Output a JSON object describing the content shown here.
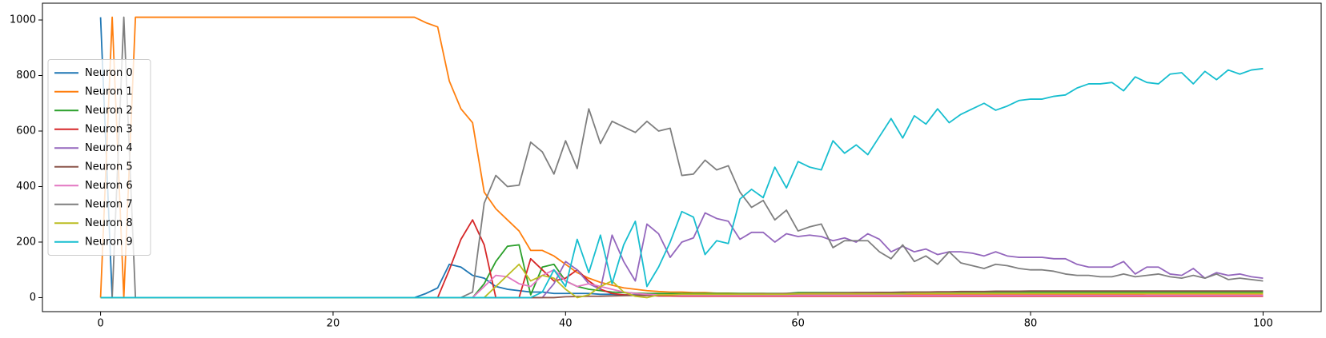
{
  "chart_data": {
    "type": "line",
    "x": [
      0,
      1,
      2,
      3,
      4,
      5,
      6,
      7,
      8,
      9,
      10,
      11,
      12,
      13,
      14,
      15,
      16,
      17,
      18,
      19,
      20,
      21,
      22,
      23,
      24,
      25,
      26,
      27,
      28,
      29,
      30,
      31,
      32,
      33,
      34,
      35,
      36,
      37,
      38,
      39,
      40,
      41,
      42,
      43,
      44,
      45,
      46,
      47,
      48,
      49,
      50,
      51,
      52,
      53,
      54,
      55,
      56,
      57,
      58,
      59,
      60,
      61,
      62,
      63,
      64,
      65,
      66,
      67,
      68,
      69,
      70,
      71,
      72,
      73,
      74,
      75,
      76,
      77,
      78,
      79,
      80,
      81,
      82,
      83,
      84,
      85,
      86,
      87,
      88,
      89,
      90,
      91,
      92,
      93,
      94,
      95,
      96,
      97,
      98,
      99,
      100
    ],
    "xlim": [
      -5,
      105
    ],
    "xticks": [
      0,
      20,
      40,
      60,
      80,
      100
    ],
    "ylim": [
      -50.5,
      1060.5
    ],
    "yticks": [
      0,
      200,
      400,
      600,
      800,
      1000
    ],
    "grid": false,
    "legend": "center left",
    "series": [
      {
        "name": "Neuron 0",
        "color": "#1f77b4",
        "values": [
          1010,
          0,
          0,
          0,
          0,
          0,
          0,
          0,
          0,
          0,
          0,
          0,
          0,
          0,
          0,
          0,
          0,
          0,
          0,
          0,
          0,
          0,
          0,
          0,
          0,
          0,
          0,
          0,
          15,
          35,
          120,
          110,
          80,
          70,
          40,
          30,
          25,
          20,
          20,
          15,
          15,
          15,
          15,
          12,
          12,
          10,
          10,
          10,
          10,
          10,
          10,
          10,
          10,
          10,
          10,
          10,
          10,
          10,
          10,
          10,
          8,
          8,
          8,
          8,
          8,
          8,
          8,
          8,
          8,
          8,
          8,
          8,
          8,
          8,
          8,
          8,
          8,
          8,
          8,
          8,
          6,
          6,
          6,
          6,
          6,
          6,
          6,
          6,
          6,
          6,
          6,
          6,
          6,
          6,
          6,
          6,
          6,
          6,
          6,
          6,
          6
        ]
      },
      {
        "name": "Neuron 1",
        "color": "#ff7f0e",
        "values": [
          0,
          1010,
          0,
          1010,
          1010,
          1010,
          1010,
          1010,
          1010,
          1010,
          1010,
          1010,
          1010,
          1010,
          1010,
          1010,
          1010,
          1010,
          1010,
          1010,
          1010,
          1010,
          1010,
          1010,
          1010,
          1010,
          1010,
          1010,
          990,
          975,
          780,
          680,
          630,
          380,
          320,
          280,
          240,
          170,
          170,
          150,
          120,
          90,
          70,
          55,
          45,
          35,
          30,
          25,
          22,
          20,
          20,
          18,
          18,
          16,
          16,
          15,
          15,
          15,
          14,
          14,
          13,
          13,
          13,
          13,
          13,
          13,
          13,
          13,
          13,
          13,
          12,
          12,
          12,
          12,
          12,
          12,
          12,
          12,
          12,
          12,
          11,
          11,
          11,
          11,
          11,
          11,
          11,
          11,
          11,
          11,
          10,
          10,
          10,
          10,
          10,
          10,
          10,
          10,
          10,
          10,
          10
        ]
      },
      {
        "name": "Neuron 2",
        "color": "#2ca02c",
        "values": [
          0,
          0,
          0,
          0,
          0,
          0,
          0,
          0,
          0,
          0,
          0,
          0,
          0,
          0,
          0,
          0,
          0,
          0,
          0,
          0,
          0,
          0,
          0,
          0,
          0,
          0,
          0,
          0,
          0,
          0,
          0,
          0,
          0,
          50,
          130,
          185,
          190,
          10,
          110,
          120,
          60,
          40,
          30,
          25,
          20,
          18,
          16,
          15,
          15,
          15,
          15,
          15,
          15,
          15,
          15,
          15,
          15,
          15,
          15,
          15,
          18,
          18,
          18,
          18,
          18,
          18,
          18,
          18,
          18,
          18,
          20,
          20,
          20,
          20,
          20,
          20,
          20,
          20,
          20,
          20,
          20,
          20,
          20,
          20,
          20,
          20,
          20,
          20,
          20,
          20,
          20,
          20,
          20,
          20,
          20,
          20,
          20,
          20,
          20,
          20,
          20
        ]
      },
      {
        "name": "Neuron 3",
        "color": "#d62728",
        "values": [
          0,
          0,
          0,
          0,
          0,
          0,
          0,
          0,
          0,
          0,
          0,
          0,
          0,
          0,
          0,
          0,
          0,
          0,
          0,
          0,
          0,
          0,
          0,
          0,
          0,
          0,
          0,
          0,
          0,
          0,
          100,
          210,
          280,
          190,
          0,
          0,
          0,
          140,
          100,
          60,
          70,
          100,
          60,
          30,
          15,
          10,
          8,
          8,
          6,
          6,
          5,
          5,
          5,
          5,
          5,
          5,
          5,
          5,
          5,
          5,
          5,
          5,
          5,
          5,
          5,
          5,
          5,
          5,
          5,
          5,
          5,
          5,
          5,
          5,
          5,
          5,
          5,
          5,
          5,
          5,
          5,
          5,
          5,
          5,
          5,
          5,
          5,
          5,
          5,
          5,
          5,
          5,
          5,
          5,
          5,
          5,
          5,
          5,
          5,
          5,
          5
        ]
      },
      {
        "name": "Neuron 4",
        "color": "#9467bd",
        "values": [
          0,
          0,
          0,
          0,
          0,
          0,
          0,
          0,
          0,
          0,
          0,
          0,
          0,
          0,
          0,
          0,
          0,
          0,
          0,
          0,
          0,
          0,
          0,
          0,
          0,
          0,
          0,
          0,
          0,
          0,
          0,
          0,
          0,
          0,
          0,
          0,
          0,
          0,
          0,
          50,
          130,
          100,
          50,
          30,
          225,
          130,
          60,
          265,
          230,
          145,
          200,
          215,
          305,
          285,
          275,
          210,
          235,
          235,
          200,
          230,
          220,
          225,
          220,
          205,
          215,
          200,
          230,
          210,
          165,
          185,
          165,
          175,
          155,
          165,
          165,
          160,
          150,
          165,
          150,
          145,
          145,
          145,
          140,
          140,
          120,
          110,
          110,
          110,
          130,
          85,
          110,
          110,
          85,
          80,
          105,
          70,
          90,
          80,
          85,
          75,
          70
        ]
      },
      {
        "name": "Neuron 5",
        "color": "#8c564b",
        "values": [
          0,
          0,
          0,
          0,
          0,
          0,
          0,
          0,
          0,
          0,
          0,
          0,
          0,
          0,
          0,
          0,
          0,
          0,
          0,
          0,
          0,
          0,
          0,
          0,
          0,
          0,
          0,
          0,
          0,
          0,
          0,
          0,
          0,
          0,
          0,
          0,
          0,
          0,
          0,
          0,
          3,
          4,
          5,
          5,
          6,
          7,
          8,
          8,
          9,
          10,
          10,
          11,
          11,
          12,
          12,
          13,
          13,
          14,
          14,
          15,
          15,
          16,
          16,
          17,
          17,
          18,
          18,
          19,
          19,
          20,
          20,
          20,
          21,
          21,
          22,
          22,
          22,
          23,
          23,
          23,
          24,
          24,
          24,
          24,
          24,
          24,
          24,
          24,
          24,
          24,
          24,
          24,
          24,
          24,
          24,
          24,
          24,
          24,
          24,
          24,
          24
        ]
      },
      {
        "name": "Neuron 6",
        "color": "#e377c2",
        "values": [
          0,
          0,
          0,
          0,
          0,
          0,
          0,
          0,
          0,
          0,
          0,
          0,
          0,
          0,
          0,
          0,
          0,
          0,
          0,
          0,
          0,
          0,
          0,
          0,
          0,
          0,
          0,
          0,
          0,
          0,
          0,
          0,
          0,
          40,
          80,
          75,
          50,
          40,
          80,
          100,
          60,
          40,
          50,
          40,
          30,
          20,
          15,
          12,
          10,
          10,
          8,
          8,
          8,
          8,
          8,
          8,
          8,
          8,
          8,
          8,
          8,
          8,
          8,
          8,
          8,
          8,
          8,
          8,
          8,
          8,
          8,
          8,
          8,
          8,
          8,
          8,
          8,
          8,
          8,
          8,
          8,
          8,
          8,
          8,
          8,
          8,
          8,
          8,
          8,
          8,
          8,
          8,
          8,
          8,
          8,
          8,
          8,
          8,
          8,
          8,
          8
        ]
      },
      {
        "name": "Neuron 7",
        "color": "#7f7f7f",
        "values": [
          0,
          0,
          1010,
          0,
          0,
          0,
          0,
          0,
          0,
          0,
          0,
          0,
          0,
          0,
          0,
          0,
          0,
          0,
          0,
          0,
          0,
          0,
          0,
          0,
          0,
          0,
          0,
          0,
          0,
          0,
          0,
          0,
          20,
          340,
          440,
          400,
          405,
          560,
          525,
          445,
          565,
          465,
          680,
          555,
          635,
          615,
          595,
          635,
          600,
          610,
          440,
          445,
          495,
          460,
          475,
          380,
          325,
          350,
          280,
          315,
          240,
          255,
          265,
          180,
          205,
          205,
          205,
          165,
          140,
          190,
          130,
          150,
          120,
          165,
          125,
          115,
          105,
          120,
          115,
          105,
          100,
          100,
          95,
          85,
          80,
          80,
          75,
          75,
          85,
          75,
          80,
          85,
          75,
          70,
          80,
          70,
          85,
          65,
          70,
          65,
          60
        ]
      },
      {
        "name": "Neuron 8",
        "color": "#bcbd22",
        "values": [
          0,
          0,
          0,
          0,
          0,
          0,
          0,
          0,
          0,
          0,
          0,
          0,
          0,
          0,
          0,
          0,
          0,
          0,
          0,
          0,
          0,
          0,
          0,
          0,
          0,
          0,
          0,
          0,
          0,
          0,
          0,
          0,
          0,
          0,
          40,
          80,
          120,
          60,
          80,
          70,
          30,
          0,
          10,
          40,
          60,
          20,
          5,
          0,
          10,
          10,
          12,
          12,
          12,
          12,
          12,
          12,
          12,
          12,
          12,
          12,
          14,
          14,
          14,
          14,
          14,
          14,
          14,
          14,
          14,
          14,
          15,
          15,
          15,
          15,
          15,
          15,
          15,
          15,
          15,
          15,
          15,
          15,
          15,
          15,
          15,
          15,
          15,
          15,
          15,
          15,
          15,
          15,
          15,
          15,
          15,
          15,
          15,
          15,
          15,
          15,
          15
        ]
      },
      {
        "name": "Neuron 9",
        "color": "#17becf",
        "values": [
          0,
          0,
          0,
          0,
          0,
          0,
          0,
          0,
          0,
          0,
          0,
          0,
          0,
          0,
          0,
          0,
          0,
          0,
          0,
          0,
          0,
          0,
          0,
          0,
          0,
          0,
          0,
          0,
          0,
          0,
          0,
          0,
          0,
          0,
          0,
          0,
          0,
          0,
          20,
          100,
          40,
          210,
          90,
          225,
          50,
          190,
          275,
          40,
          110,
          200,
          310,
          290,
          155,
          205,
          195,
          355,
          390,
          360,
          470,
          395,
          490,
          470,
          460,
          565,
          520,
          550,
          515,
          580,
          645,
          575,
          655,
          625,
          680,
          630,
          660,
          680,
          700,
          675,
          690,
          710,
          715,
          715,
          725,
          730,
          755,
          770,
          770,
          775,
          745,
          795,
          775,
          770,
          805,
          810,
          770,
          815,
          785,
          820,
          805,
          820,
          825
        ]
      }
    ]
  }
}
